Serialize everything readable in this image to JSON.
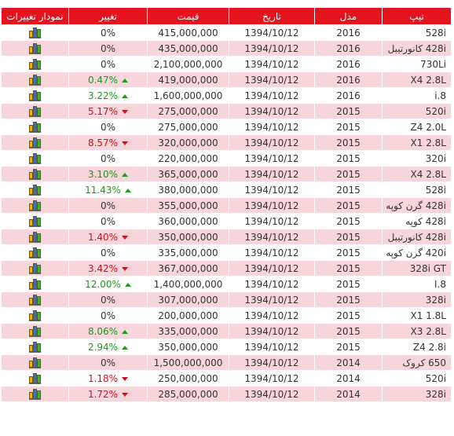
{
  "headers": {
    "type": "تیپ",
    "model": "مدل",
    "date": "تاریخ",
    "price": "قیمت",
    "change": "تغییر",
    "chart": "نمودار تغییرات"
  },
  "rows": [
    {
      "type": "528i",
      "model": "2016",
      "date": "1394/10/12",
      "price": "415,000,000",
      "change": "0%",
      "dir": "same"
    },
    {
      "type": "428i کانورتیبل",
      "model": "2016",
      "date": "1394/10/12",
      "price": "435,000,000",
      "change": "0%",
      "dir": "same"
    },
    {
      "type": "730Li",
      "model": "2016",
      "date": "1394/10/12",
      "price": "2,100,000,000",
      "change": "0%",
      "dir": "same"
    },
    {
      "type": "X4 2.8L",
      "model": "2016",
      "date": "1394/10/12",
      "price": "419,000,000",
      "change": "0.47%",
      "dir": "up"
    },
    {
      "type": "i.8",
      "model": "2016",
      "date": "1394/10/12",
      "price": "1,600,000,000",
      "change": "3.22%",
      "dir": "up"
    },
    {
      "type": "520i",
      "model": "2015",
      "date": "1394/10/12",
      "price": "275,000,000",
      "change": "5.17%",
      "dir": "down"
    },
    {
      "type": "Z4 2.0L",
      "model": "2015",
      "date": "1394/10/12",
      "price": "275,000,000",
      "change": "0%",
      "dir": "same"
    },
    {
      "type": "X1 2.8L",
      "model": "2015",
      "date": "1394/10/12",
      "price": "320,000,000",
      "change": "8.57%",
      "dir": "down"
    },
    {
      "type": "320i",
      "model": "2015",
      "date": "1394/10/12",
      "price": "220,000,000",
      "change": "0%",
      "dir": "same"
    },
    {
      "type": "X4 2.8L",
      "model": "2015",
      "date": "1394/10/12",
      "price": "365,000,000",
      "change": "3.10%",
      "dir": "up"
    },
    {
      "type": "528i",
      "model": "2015",
      "date": "1394/10/12",
      "price": "380,000,000",
      "change": "11.43%",
      "dir": "up"
    },
    {
      "type": "428i گرن کوپه",
      "model": "2015",
      "date": "1394/10/12",
      "price": "355,000,000",
      "change": "0%",
      "dir": "same"
    },
    {
      "type": "428i کوپه",
      "model": "2015",
      "date": "1394/10/12",
      "price": "360,000,000",
      "change": "0%",
      "dir": "same"
    },
    {
      "type": "428i کانورتیبل",
      "model": "2015",
      "date": "1394/10/12",
      "price": "350,000,000",
      "change": "1.40%",
      "dir": "down"
    },
    {
      "type": "420i گرن کوپه",
      "model": "2015",
      "date": "1394/10/12",
      "price": "335,000,000",
      "change": "0%",
      "dir": "same"
    },
    {
      "type": "328i GT",
      "model": "2015",
      "date": "1394/10/12",
      "price": "367,000,000",
      "change": "3.42%",
      "dir": "down"
    },
    {
      "type": "I.8",
      "model": "2015",
      "date": "1394/10/12",
      "price": "1,400,000,000",
      "change": "12.00%",
      "dir": "up"
    },
    {
      "type": "328i",
      "model": "2015",
      "date": "1394/10/12",
      "price": "307,000,000",
      "change": "0%",
      "dir": "same"
    },
    {
      "type": "X1 1.8L",
      "model": "2015",
      "date": "1394/10/12",
      "price": "200,000,000",
      "change": "0%",
      "dir": "same"
    },
    {
      "type": "X3 2.8L",
      "model": "2015",
      "date": "1394/10/12",
      "price": "335,000,000",
      "change": "8.06%",
      "dir": "up"
    },
    {
      "type": "Z4 2.8i",
      "model": "2015",
      "date": "1394/10/12",
      "price": "350,000,000",
      "change": "2.94%",
      "dir": "up"
    },
    {
      "type": "650 کروک",
      "model": "2014",
      "date": "1394/10/12",
      "price": "1,500,000,000",
      "change": "0%",
      "dir": "same"
    },
    {
      "type": "520i",
      "model": "2014",
      "date": "1394/10/12",
      "price": "250,000,000",
      "change": "1.18%",
      "dir": "down"
    },
    {
      "type": "328i",
      "model": "2014",
      "date": "1394/10/12",
      "price": "285,000,000",
      "change": "1.72%",
      "dir": "down"
    }
  ],
  "colors": {
    "header_bg": "#e3141e",
    "row_alt_bg": "#f6d6da",
    "up": "#1a9a1a",
    "down": "#d0101c"
  },
  "icons": {
    "chart": "bar-chart-icon",
    "up": "triangle-up-icon",
    "down": "triangle-down-icon"
  }
}
